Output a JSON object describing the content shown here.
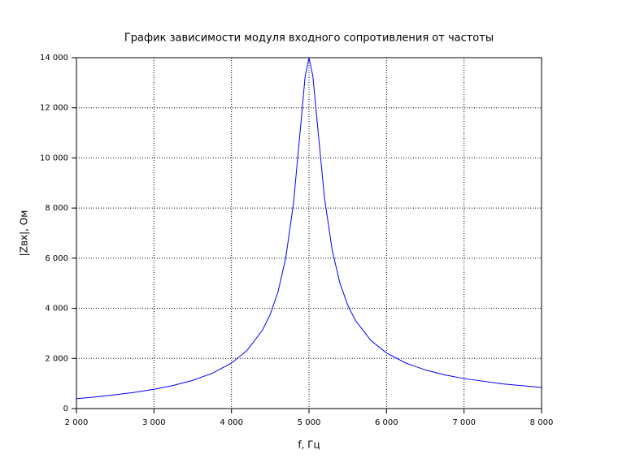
{
  "chart_data": {
    "type": "line",
    "title": "График зависимости модуля входного сопротивления от частоты",
    "x_label": "f, Гц",
    "y_label": "|Zвх|, Ом",
    "x": [
      2000,
      2250,
      2500,
      2750,
      3000,
      3250,
      3500,
      3750,
      4000,
      4200,
      4400,
      4500,
      4600,
      4700,
      4800,
      4900,
      4950,
      5000,
      5050,
      5100,
      5200,
      5300,
      5400,
      5500,
      5600,
      5800,
      6000,
      6250,
      6500,
      6750,
      7000,
      7500,
      8000
    ],
    "series": [
      {
        "name": "|Zвх|",
        "color": "#0000ff",
        "values": [
          392,
          464,
          549,
          649,
          771,
          925,
          1127,
          1405,
          1815,
          2317,
          3131,
          3758,
          4651,
          6008,
          8190,
          11540,
          13248,
          14000,
          13261,
          11614,
          8395,
          6306,
          4993,
          4123,
          3510,
          2712,
          2218,
          1815,
          1542,
          1345,
          1197,
          986,
          843
        ]
      }
    ],
    "xlim": [
      2000,
      8000
    ],
    "ylim": [
      0,
      14000
    ],
    "xticks": [
      {
        "value": 2000,
        "label": "2 000"
      },
      {
        "value": 3000,
        "label": "3 000"
      },
      {
        "value": 4000,
        "label": "4 000"
      },
      {
        "value": 5000,
        "label": "5 000"
      },
      {
        "value": 6000,
        "label": "6 000"
      },
      {
        "value": 7000,
        "label": "7 000"
      },
      {
        "value": 8000,
        "label": "8 000"
      }
    ],
    "yticks": [
      0,
      {
        "value": 2000,
        "label": "2 000"
      },
      {
        "value": 4000,
        "label": "4 000"
      },
      {
        "value": 6000,
        "label": "6 000"
      },
      {
        "value": 8000,
        "label": "8 000"
      },
      {
        "value": 10000,
        "label": "10 000"
      },
      {
        "value": 12000,
        "label": "12 000"
      },
      {
        "value": 14000,
        "label": "14 000"
      }
    ],
    "grid": true
  }
}
